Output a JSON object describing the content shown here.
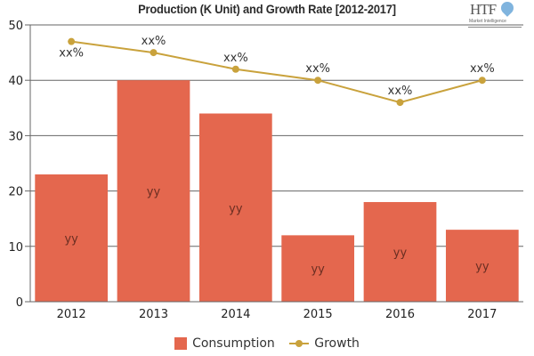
{
  "chart_data": {
    "type": "bar",
    "title": "Production (K Unit) and Growth Rate [2012-2017]",
    "xlabel": "",
    "ylabel": "",
    "ylim": [
      0,
      50
    ],
    "yticks": [
      0,
      10,
      20,
      30,
      40,
      50
    ],
    "grid": true,
    "categories": [
      "2012",
      "2013",
      "2014",
      "2015",
      "2016",
      "2017"
    ],
    "series": [
      {
        "name": "Consumption",
        "type": "bar",
        "color": "#e4674e",
        "values": [
          23,
          40,
          34,
          12,
          18,
          13
        ],
        "labels": [
          "yy",
          "yy",
          "yy",
          "yy",
          "yy",
          "yy"
        ]
      },
      {
        "name": "Growth",
        "type": "line",
        "color": "#c9a23c",
        "values": [
          47,
          45,
          42,
          40,
          36,
          40
        ],
        "labels": [
          "xx%",
          "xx%",
          "xx%",
          "xx%",
          "xx%",
          "xx%"
        ]
      }
    ],
    "legend": "bottom-center"
  },
  "logo": {
    "text": "HTF",
    "subtext": "Market Intelligence"
  }
}
